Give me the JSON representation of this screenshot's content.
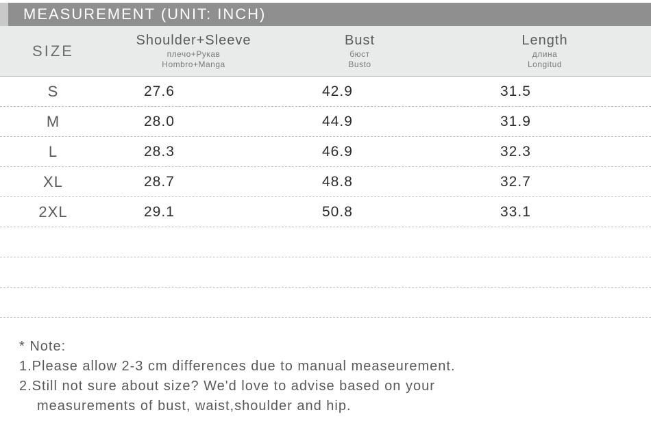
{
  "title": "MEASUREMENT (UNIT: INCH)",
  "colors": {
    "title_bg": "#8f8f8f",
    "title_accent": "#c9c9c9",
    "header_bg": "#e9eaea",
    "header_text": "#5a5a5a",
    "sub_text": "#7a7a7a",
    "value_text": "#2c2c2c",
    "divider": "#bcbcbc",
    "note_text": "#595959"
  },
  "table": {
    "size_header": "SIZE",
    "columns": [
      {
        "main": "Shoulder+Sleeve",
        "sub1": "плечо+Рукав",
        "sub2": "Hombro+Manga"
      },
      {
        "main": "Bust",
        "sub1": "бюст",
        "sub2": "Busto"
      },
      {
        "main": "Length",
        "sub1": "длина",
        "sub2": "Longitud"
      }
    ],
    "rows": [
      {
        "size": "S",
        "a": "27.6",
        "b": "42.9",
        "c": "31.5"
      },
      {
        "size": "M",
        "a": "28.0",
        "b": "44.9",
        "c": "31.9"
      },
      {
        "size": "L",
        "a": "28.3",
        "b": "46.9",
        "c": "32.3"
      },
      {
        "size": "XL",
        "a": "28.7",
        "b": "48.8",
        "c": "32.7"
      },
      {
        "size": "2XL",
        "a": "29.1",
        "b": "50.8",
        "c": "33.1"
      }
    ],
    "empty_rows": 3
  },
  "note": {
    "heading": "* Note:",
    "line1": "1.Please allow 2-3 cm differences due to manual measeurement.",
    "line2a": "2.Still not sure about size? We'd love to advise based on your",
    "line2b": "measurements of bust, waist,shoulder and hip."
  }
}
